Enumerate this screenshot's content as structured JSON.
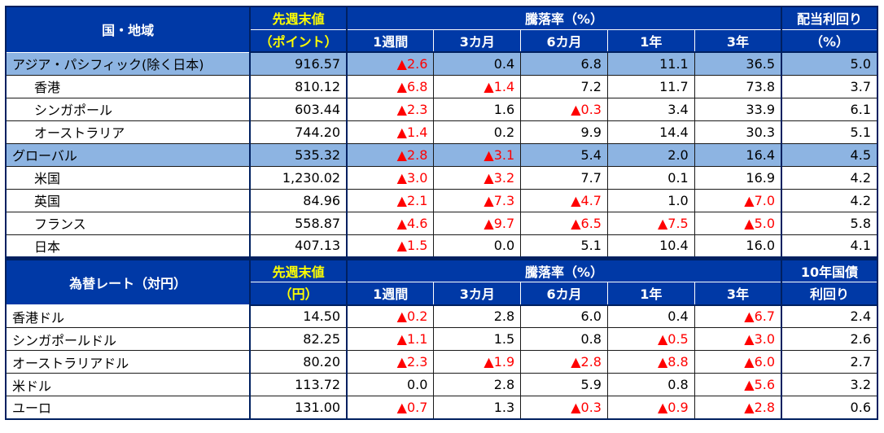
{
  "colors": {
    "header_bg": "#0039A6",
    "header_text": "#FFFFFF",
    "value_header_text": "#FFFF00",
    "highlight_row_bg": "#8DB4E2",
    "negative_value": "#FF0000",
    "border_dark": "#002060"
  },
  "negative_marker": "▲",
  "tables": [
    {
      "name_header": "国・地域",
      "value_header": [
        "先週末値",
        "（ポイント）"
      ],
      "change_header": "騰落率（%）",
      "period_headers": [
        "1週間",
        "3カ月",
        "6カ月",
        "1年",
        "3年"
      ],
      "extra_header": [
        "配当利回り",
        "（%）"
      ],
      "rows": [
        {
          "name": "アジア・パシフィック(除く日本)",
          "value": "916.57",
          "changes": [
            "▲2.6",
            "0.4",
            "6.8",
            "11.1",
            "36.5"
          ],
          "extra": "5.0",
          "highlight": true,
          "indent": false
        },
        {
          "name": "香港",
          "value": "810.12",
          "changes": [
            "▲6.8",
            "▲1.4",
            "7.2",
            "11.7",
            "73.8"
          ],
          "extra": "3.7",
          "highlight": false,
          "indent": true
        },
        {
          "name": "シンガポール",
          "value": "603.44",
          "changes": [
            "▲2.3",
            "1.6",
            "▲0.3",
            "3.4",
            "33.9"
          ],
          "extra": "6.1",
          "highlight": false,
          "indent": true
        },
        {
          "name": "オーストラリア",
          "value": "744.20",
          "changes": [
            "▲1.4",
            "0.2",
            "9.9",
            "14.4",
            "30.3"
          ],
          "extra": "5.1",
          "highlight": false,
          "indent": true
        },
        {
          "name": "グローバル",
          "value": "535.32",
          "changes": [
            "▲2.8",
            "▲3.1",
            "5.4",
            "2.0",
            "16.4"
          ],
          "extra": "4.5",
          "highlight": true,
          "indent": false
        },
        {
          "name": "米国",
          "value": "1,230.02",
          "changes": [
            "▲3.0",
            "▲3.2",
            "7.7",
            "0.1",
            "16.9"
          ],
          "extra": "4.2",
          "highlight": false,
          "indent": true
        },
        {
          "name": "英国",
          "value": "84.96",
          "changes": [
            "▲2.1",
            "▲7.3",
            "▲4.7",
            "1.0",
            "▲7.0"
          ],
          "extra": "4.2",
          "highlight": false,
          "indent": true
        },
        {
          "name": "フランス",
          "value": "558.87",
          "changes": [
            "▲4.6",
            "▲9.7",
            "▲6.5",
            "▲7.5",
            "▲5.0"
          ],
          "extra": "5.8",
          "highlight": false,
          "indent": true
        },
        {
          "name": "日本",
          "value": "407.13",
          "changes": [
            "▲1.5",
            "0.0",
            "5.1",
            "10.4",
            "16.0"
          ],
          "extra": "4.1",
          "highlight": false,
          "indent": true
        }
      ]
    },
    {
      "name_header": "為替レート（対円）",
      "value_header": [
        "先週末値",
        "（円）"
      ],
      "change_header": "騰落率（%）",
      "period_headers": [
        "1週間",
        "3カ月",
        "6カ月",
        "1年",
        "3年"
      ],
      "extra_header": [
        "10年国債",
        "利回り"
      ],
      "rows": [
        {
          "name": "香港ドル",
          "value": "14.50",
          "changes": [
            "▲0.2",
            "2.8",
            "6.0",
            "0.4",
            "▲6.7"
          ],
          "extra": "2.4",
          "highlight": false,
          "indent": false
        },
        {
          "name": "シンガポールドル",
          "value": "82.25",
          "changes": [
            "▲1.1",
            "1.5",
            "0.8",
            "▲0.5",
            "▲3.0"
          ],
          "extra": "2.6",
          "highlight": false,
          "indent": false
        },
        {
          "name": "オーストラリアドル",
          "value": "80.20",
          "changes": [
            "▲2.3",
            "▲1.9",
            "▲2.8",
            "▲8.8",
            "▲6.0"
          ],
          "extra": "2.7",
          "highlight": false,
          "indent": false
        },
        {
          "name": "米ドル",
          "value": "113.72",
          "changes": [
            "0.0",
            "2.8",
            "5.9",
            "0.8",
            "▲5.6"
          ],
          "extra": "3.2",
          "highlight": false,
          "indent": false
        },
        {
          "name": "ユーロ",
          "value": "131.00",
          "changes": [
            "▲0.7",
            "1.3",
            "▲0.3",
            "▲0.9",
            "▲2.8"
          ],
          "extra": "0.6",
          "highlight": false,
          "indent": false
        }
      ]
    }
  ]
}
